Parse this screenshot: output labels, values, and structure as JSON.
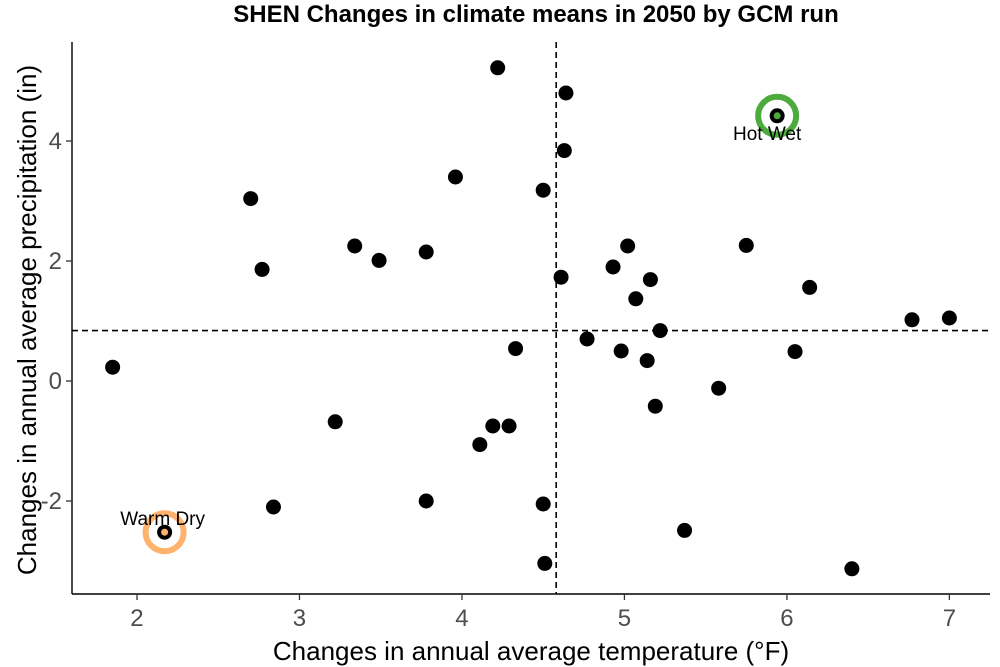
{
  "chart_data": {
    "type": "scatter",
    "title": "SHEN Changes in climate means in 2050 by GCM run",
    "xlabel": "Changes in annual average temperature (°F)",
    "ylabel": "Changes in annual average precipitation (in)",
    "xlim": [
      1.6,
      7.25
    ],
    "ylim": [
      -3.55,
      5.65
    ],
    "xticks": [
      2,
      3,
      4,
      5,
      6,
      7
    ],
    "yticks": [
      -2,
      0,
      2,
      4
    ],
    "reference_lines": {
      "x": 4.58,
      "y": 0.84
    },
    "grid": false,
    "point_color": "#000000",
    "points": [
      {
        "x": 1.85,
        "y": 0.23
      },
      {
        "x": 2.7,
        "y": 3.04
      },
      {
        "x": 2.77,
        "y": 1.86
      },
      {
        "x": 2.84,
        "y": -2.1
      },
      {
        "x": 3.22,
        "y": -0.68
      },
      {
        "x": 3.34,
        "y": 2.25
      },
      {
        "x": 3.49,
        "y": 2.01
      },
      {
        "x": 3.78,
        "y": 2.15
      },
      {
        "x": 3.78,
        "y": -2.0
      },
      {
        "x": 3.96,
        "y": 3.4
      },
      {
        "x": 4.11,
        "y": -1.06
      },
      {
        "x": 4.19,
        "y": -0.75
      },
      {
        "x": 4.22,
        "y": 5.22
      },
      {
        "x": 4.29,
        "y": -0.75
      },
      {
        "x": 4.33,
        "y": 0.54
      },
      {
        "x": 4.5,
        "y": 3.18
      },
      {
        "x": 4.5,
        "y": -2.05
      },
      {
        "x": 4.51,
        "y": -3.04
      },
      {
        "x": 4.61,
        "y": 1.73
      },
      {
        "x": 4.63,
        "y": 3.84
      },
      {
        "x": 4.64,
        "y": 4.8
      },
      {
        "x": 4.77,
        "y": 0.7
      },
      {
        "x": 4.93,
        "y": 1.9
      },
      {
        "x": 4.98,
        "y": 0.5
      },
      {
        "x": 5.02,
        "y": 2.25
      },
      {
        "x": 5.07,
        "y": 1.37
      },
      {
        "x": 5.14,
        "y": 0.34
      },
      {
        "x": 5.16,
        "y": 1.69
      },
      {
        "x": 5.19,
        "y": -0.42
      },
      {
        "x": 5.22,
        "y": 0.84
      },
      {
        "x": 5.37,
        "y": -2.49
      },
      {
        "x": 5.58,
        "y": -0.12
      },
      {
        "x": 5.75,
        "y": 2.26
      },
      {
        "x": 6.05,
        "y": 0.49
      },
      {
        "x": 6.14,
        "y": 1.56
      },
      {
        "x": 6.4,
        "y": -3.13
      },
      {
        "x": 6.77,
        "y": 1.02
      },
      {
        "x": 7.0,
        "y": 1.05
      }
    ],
    "highlights": [
      {
        "label": "Hot Wet",
        "x": 5.94,
        "y": 4.42,
        "color": "#4daa3d"
      },
      {
        "label": "Warm Dry",
        "x": 2.17,
        "y": -2.52,
        "color": "#ffb26b"
      }
    ]
  }
}
